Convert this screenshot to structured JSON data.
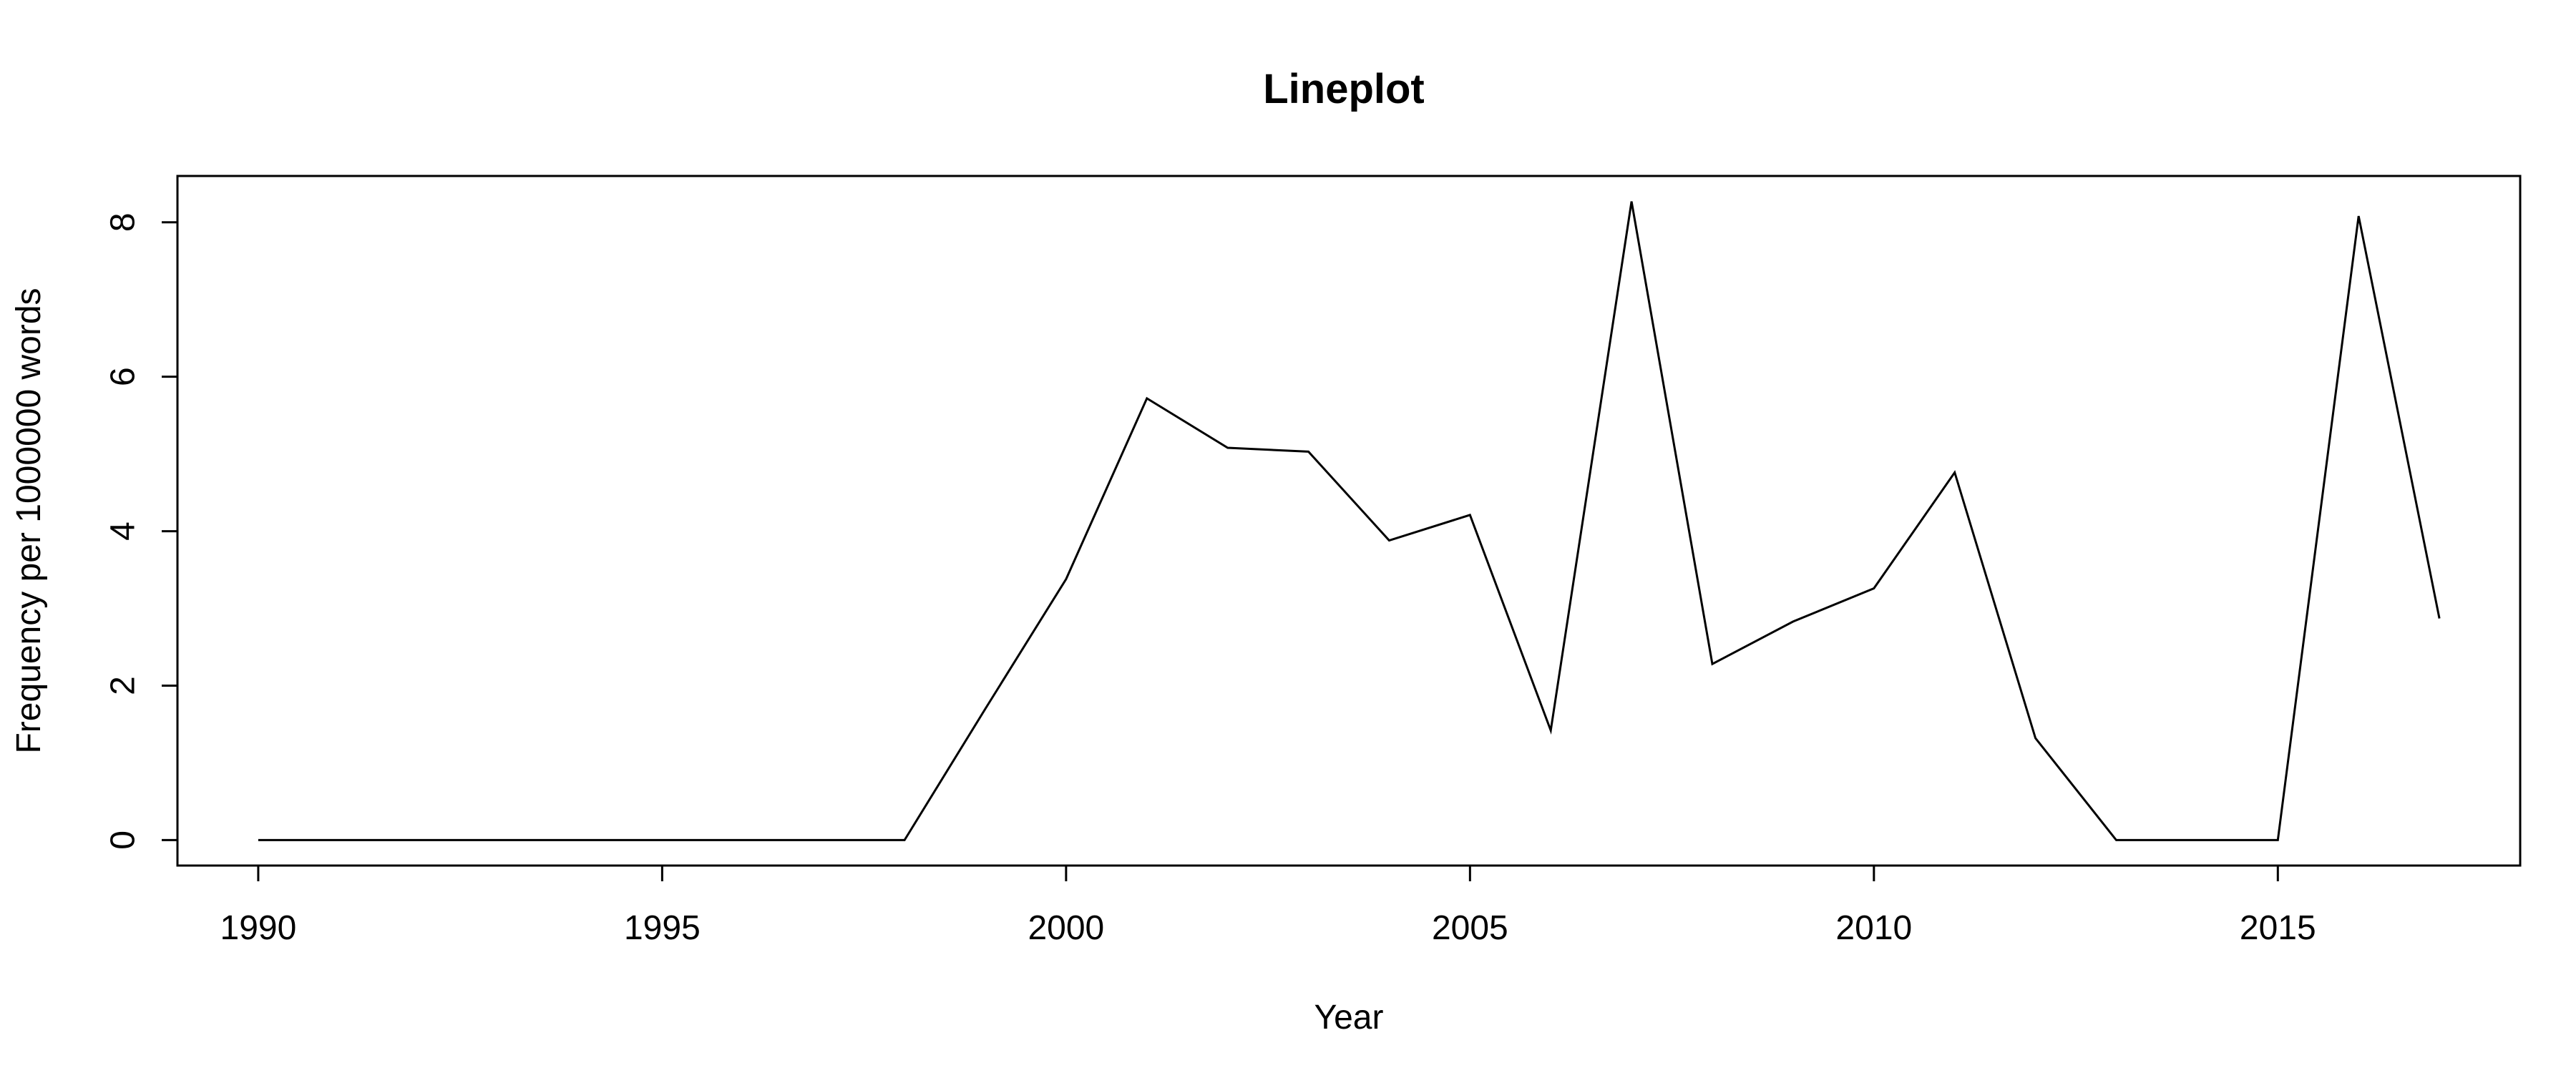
{
  "chart_data": {
    "type": "line",
    "title": "Lineplot",
    "xlabel": "Year",
    "ylabel": "Frequency per 1000000 words",
    "xlim": [
      1989,
      2018
    ],
    "ylim": [
      -0.33,
      8.6
    ],
    "x_ticks": [
      1990,
      1995,
      2000,
      2005,
      2010,
      2015
    ],
    "y_ticks": [
      0,
      2,
      4,
      6,
      8
    ],
    "grid": false,
    "colors": {
      "line": "#000000",
      "axis": "#000000",
      "background": "#ffffff"
    },
    "series": [
      {
        "x": [
          1990,
          1991,
          1992,
          1993,
          1994,
          1995,
          1996,
          1997,
          1998,
          1999,
          2000,
          2001,
          2002,
          2003,
          2004,
          2005,
          2006,
          2007,
          2008,
          2009,
          2010,
          2011,
          2012,
          2013,
          2014,
          2015,
          2016,
          2017
        ],
        "values": [
          0,
          0,
          0,
          0,
          0,
          0,
          0,
          0,
          0,
          1.7,
          3.38,
          5.72,
          5.08,
          5.03,
          3.88,
          4.21,
          1.42,
          8.27,
          2.28,
          2.83,
          3.26,
          4.76,
          1.32,
          0,
          0,
          0,
          8.08,
          2.87
        ]
      }
    ]
  }
}
